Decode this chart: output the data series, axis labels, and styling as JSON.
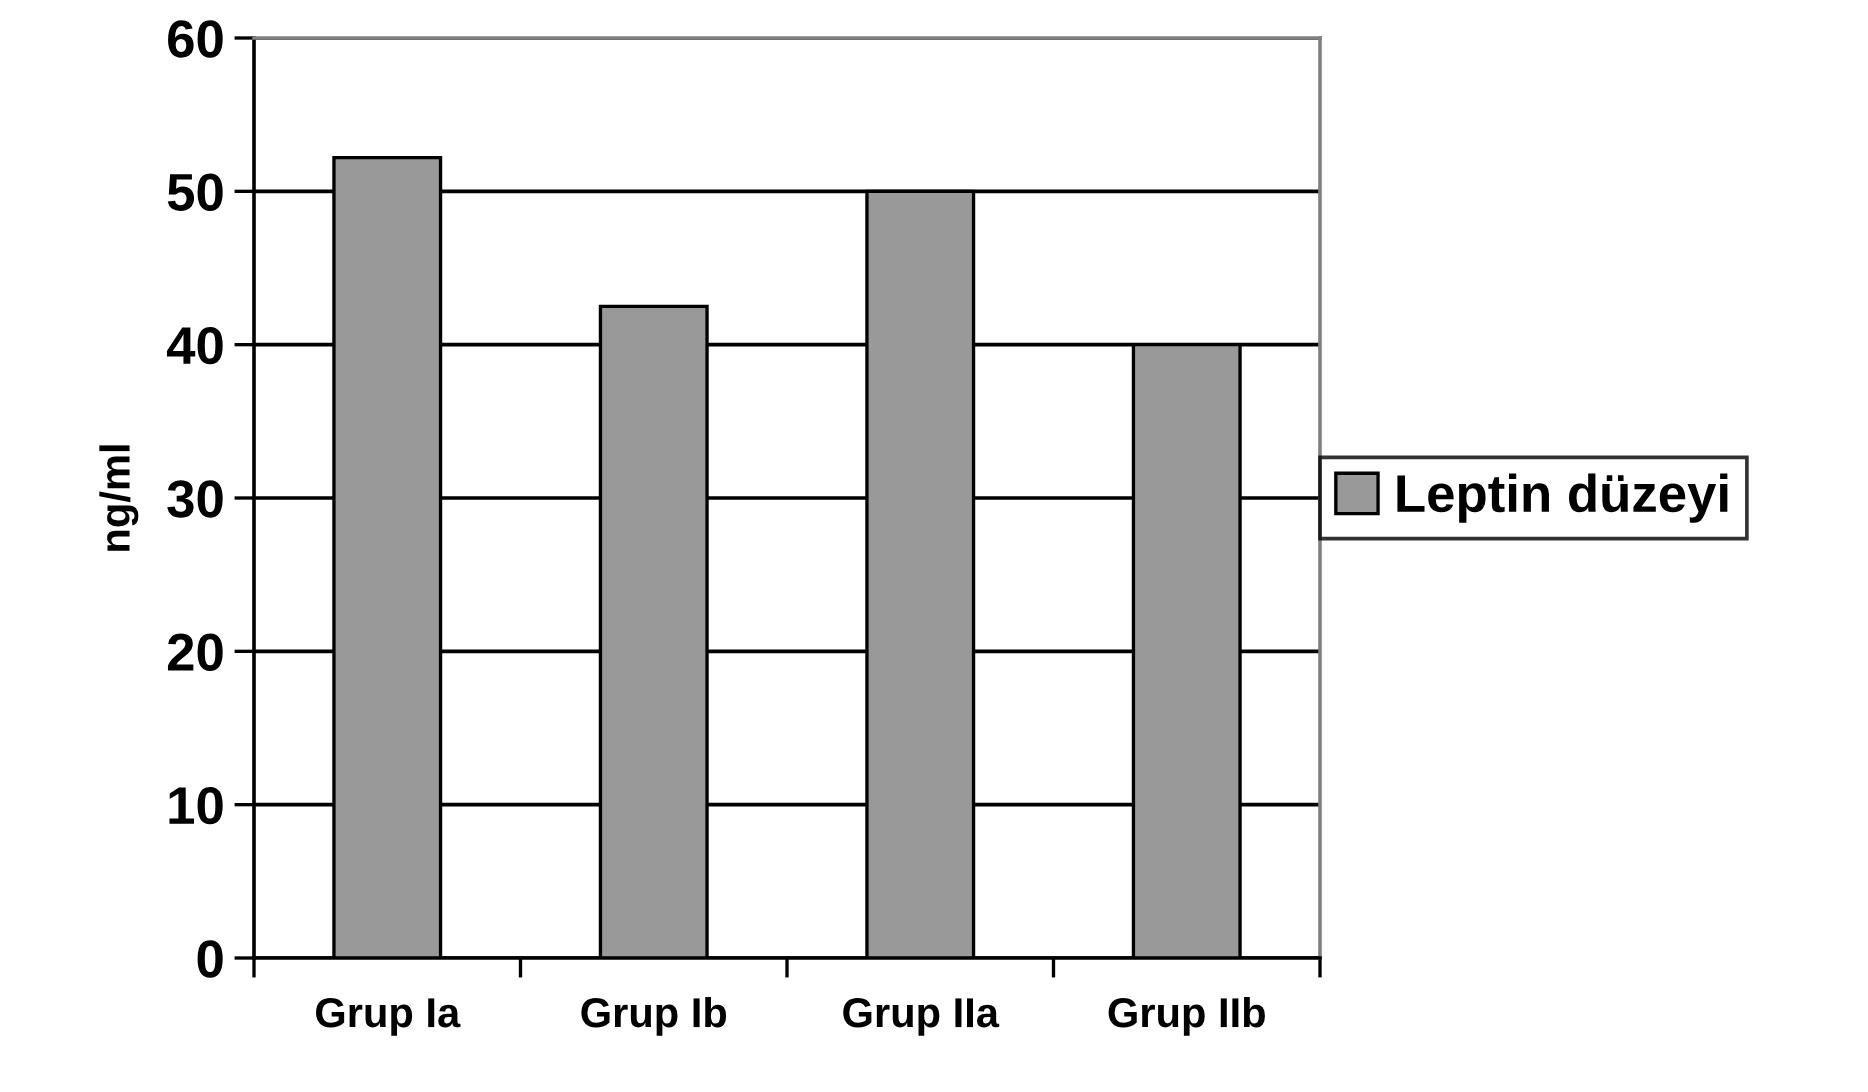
{
  "chart_data": {
    "type": "bar",
    "ylabel": "ng/ml",
    "categories": [
      "Grup Ia",
      "Grup Ib",
      "Grup IIa",
      "Grup IIb"
    ],
    "series": [
      {
        "name": "Leptin düzeyi",
        "color": "#999999",
        "values": [
          52.2,
          42.5,
          50,
          40
        ]
      }
    ],
    "ylim": [
      0,
      60
    ],
    "yticks": [
      0,
      10,
      20,
      30,
      40,
      50,
      60
    ],
    "grid": "y",
    "legend": "right"
  }
}
